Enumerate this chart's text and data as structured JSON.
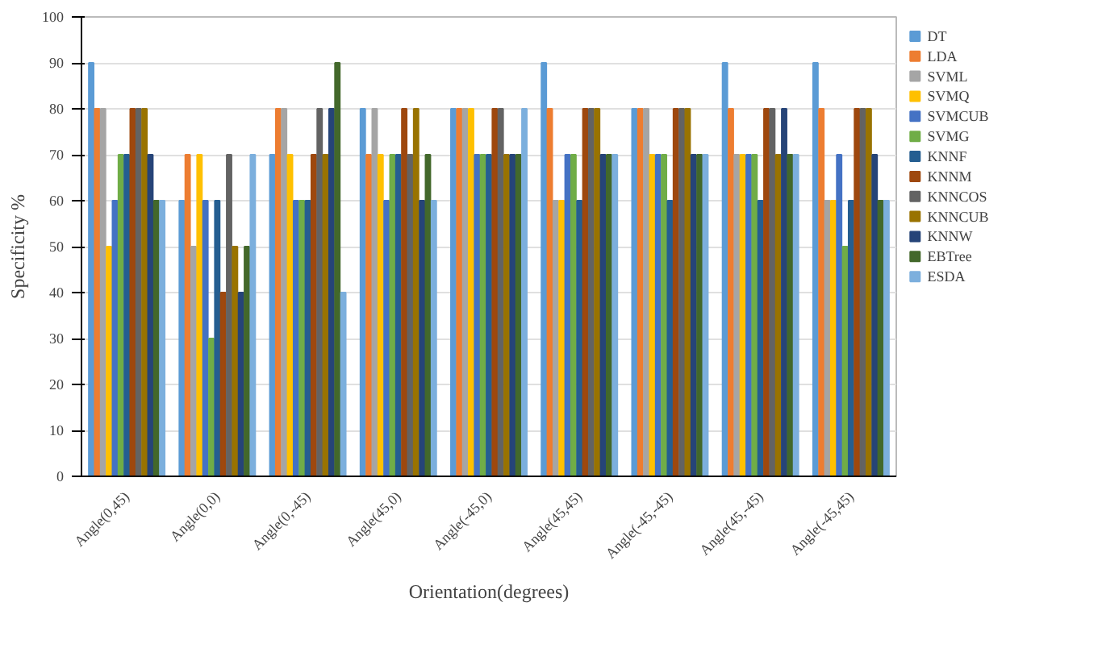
{
  "chart_data": {
    "type": "bar",
    "xlabel": "Orientation(degrees)",
    "ylabel": "Specificity %",
    "categories": [
      "Angle(0,45)",
      "Angle(0,0)",
      "Angle(0,-45)",
      "Angle(45,0)",
      "Angle(-45,0)",
      "Angle(45,45)",
      "Angle(-45,-45)",
      "Angle(45,-45)",
      "Angle(-45,45)"
    ],
    "series": [
      {
        "name": "DT",
        "color": "#5b9bd5",
        "values": [
          90,
          60,
          70,
          80,
          80,
          90,
          80,
          90,
          90
        ]
      },
      {
        "name": "LDA",
        "color": "#ed7d31",
        "values": [
          80,
          70,
          80,
          70,
          80,
          80,
          80,
          80,
          80
        ]
      },
      {
        "name": "SVML",
        "color": "#a5a5a5",
        "values": [
          80,
          50,
          80,
          80,
          80,
          60,
          80,
          70,
          60
        ]
      },
      {
        "name": "SVMQ",
        "color": "#ffc000",
        "values": [
          50,
          70,
          70,
          70,
          80,
          60,
          70,
          70,
          60
        ]
      },
      {
        "name": "SVMCUB",
        "color": "#4472c4",
        "values": [
          60,
          60,
          60,
          60,
          70,
          70,
          70,
          70,
          70
        ]
      },
      {
        "name": "SVMG",
        "color": "#70ad47",
        "values": [
          70,
          30,
          60,
          70,
          70,
          70,
          70,
          70,
          50
        ]
      },
      {
        "name": "KNNF",
        "color": "#255e91",
        "values": [
          70,
          60,
          60,
          70,
          70,
          60,
          60,
          60,
          60
        ]
      },
      {
        "name": "KNNM",
        "color": "#9e480e",
        "values": [
          80,
          40,
          70,
          80,
          80,
          80,
          80,
          80,
          80
        ]
      },
      {
        "name": "KNNCOS",
        "color": "#636363",
        "values": [
          80,
          70,
          80,
          70,
          80,
          80,
          80,
          80,
          80
        ]
      },
      {
        "name": "KNNCUB",
        "color": "#997300",
        "values": [
          80,
          50,
          70,
          80,
          70,
          80,
          80,
          70,
          80
        ]
      },
      {
        "name": "KNNW",
        "color": "#264478",
        "values": [
          70,
          40,
          80,
          60,
          70,
          70,
          70,
          80,
          70
        ]
      },
      {
        "name": "EBTree",
        "color": "#43682b",
        "values": [
          60,
          50,
          90,
          70,
          70,
          70,
          70,
          70,
          60
        ]
      },
      {
        "name": "ESDA",
        "color": "#7cafdd",
        "values": [
          60,
          70,
          40,
          60,
          80,
          70,
          70,
          70,
          60
        ]
      }
    ],
    "ylim": [
      0,
      100
    ],
    "yticks": [
      0,
      10,
      20,
      30,
      40,
      50,
      60,
      70,
      80,
      90,
      100
    ],
    "grid": "y",
    "legend": "right"
  }
}
